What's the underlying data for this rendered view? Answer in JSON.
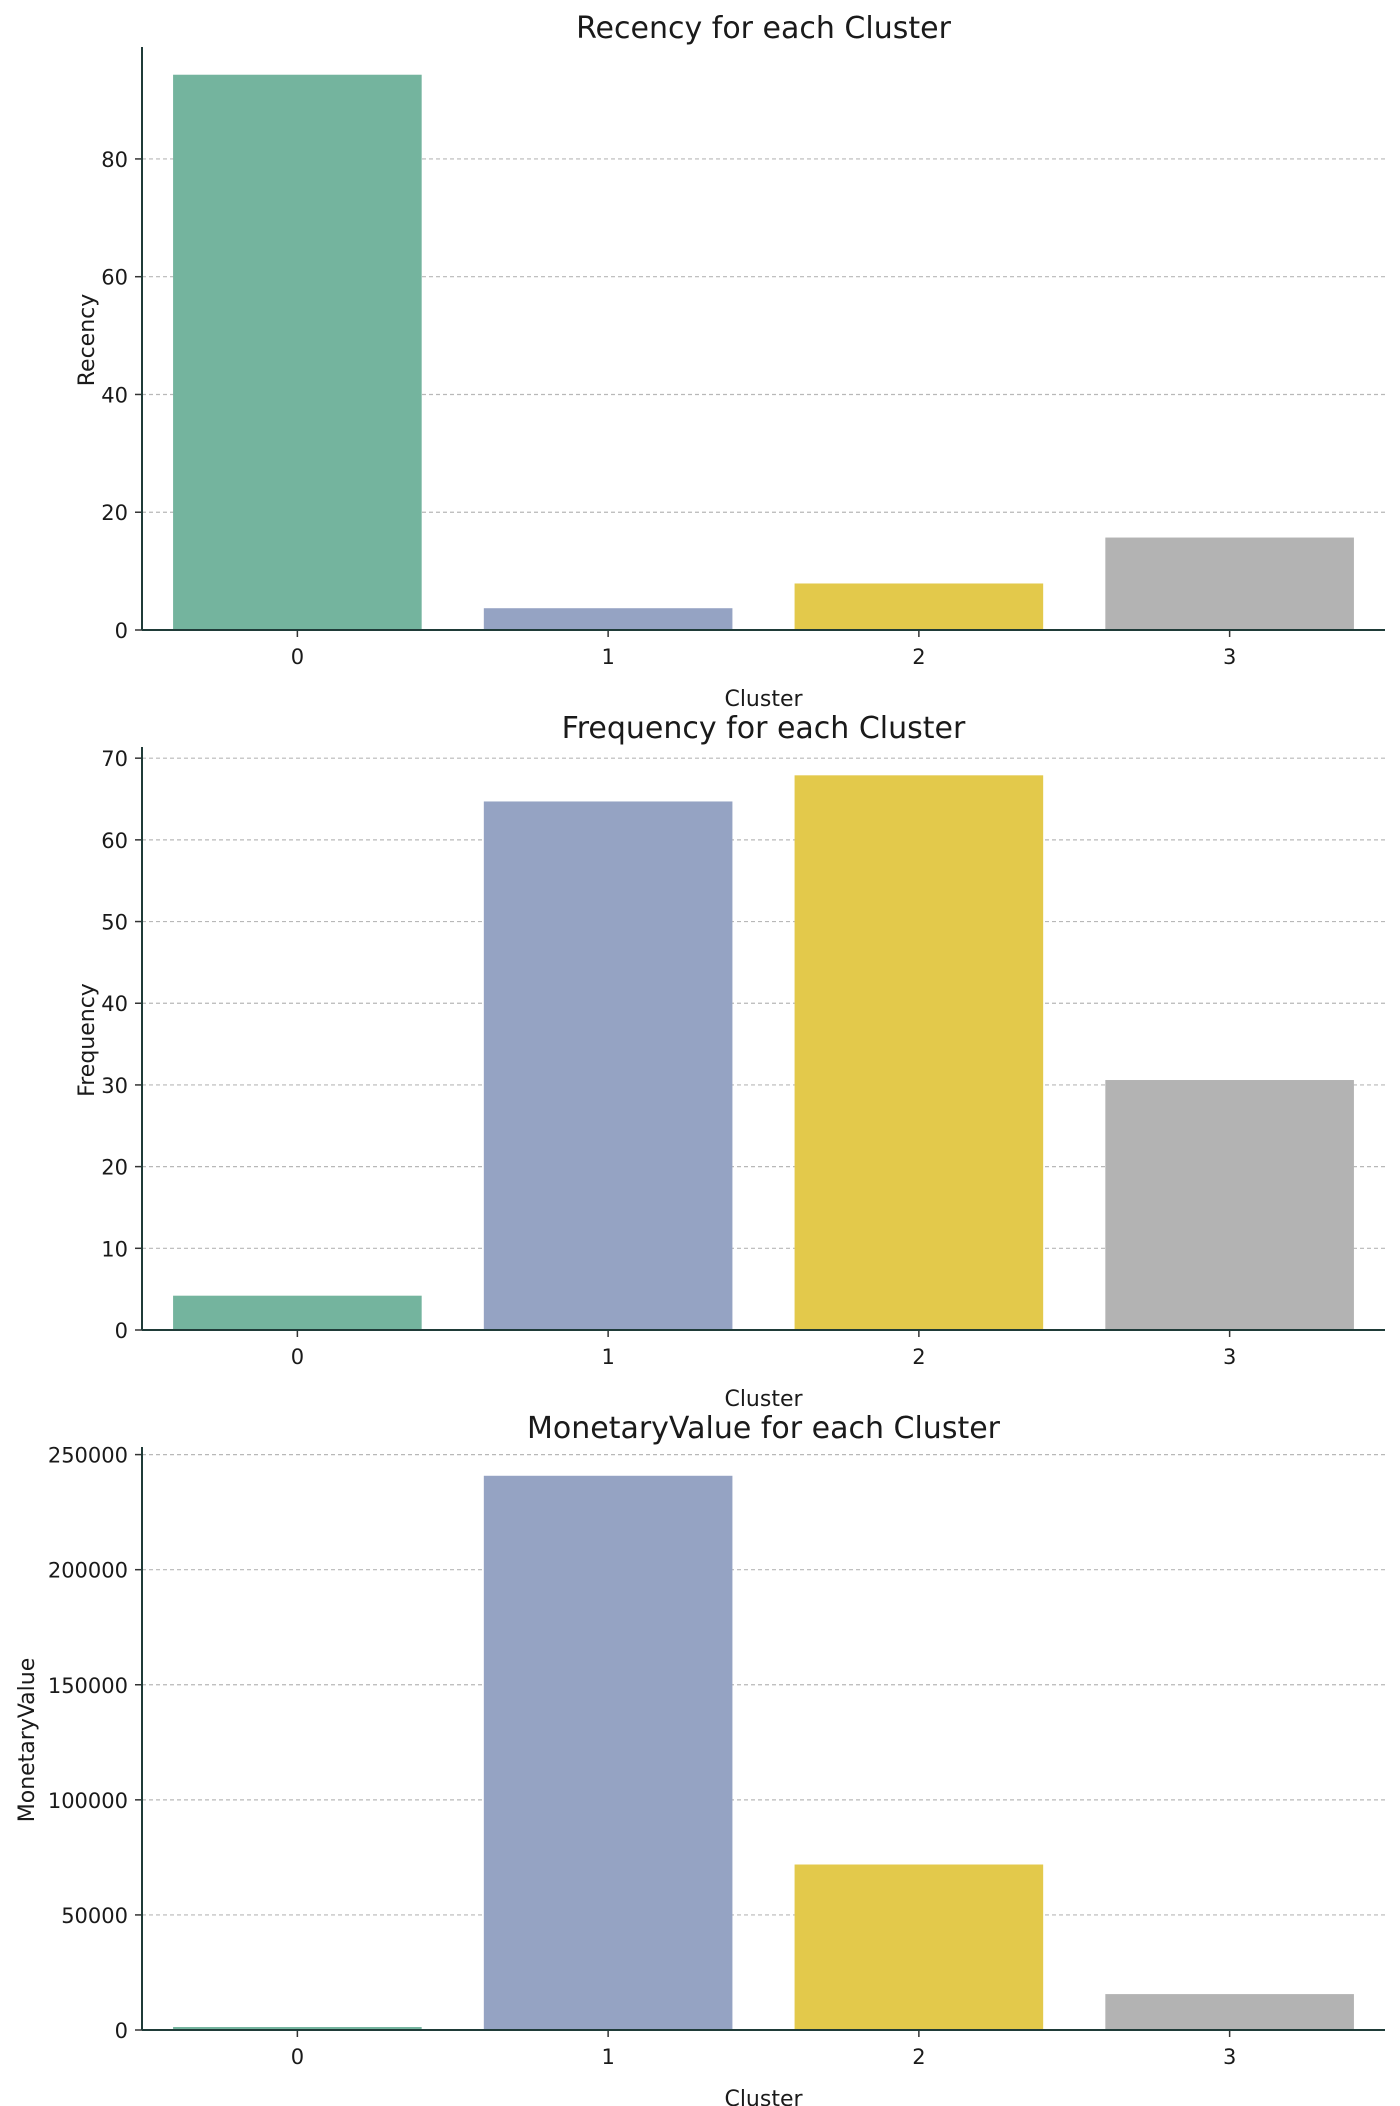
{
  "chart_data": [
    {
      "type": "bar",
      "title": "Recency for each Cluster",
      "xlabel": "Cluster",
      "ylabel": "Recency",
      "categories": [
        "0",
        "1",
        "2",
        "3"
      ],
      "values": [
        94.3,
        3.7,
        7.9,
        15.7
      ],
      "colors": [
        "#74b49e",
        "#95a3c3",
        "#e3c94b",
        "#b3b3b3"
      ],
      "ylim": [
        0,
        98.5
      ],
      "yticks": [
        0,
        20,
        40,
        60,
        80
      ],
      "ytick_labels": [
        "0",
        "20",
        "40",
        "60",
        "80"
      ],
      "grid": "y-dashed"
    },
    {
      "type": "bar",
      "title": "Frequency for each Cluster",
      "xlabel": "Cluster",
      "ylabel": "Frequency",
      "categories": [
        "0",
        "1",
        "2",
        "3"
      ],
      "values": [
        4.2,
        64.7,
        67.9,
        30.6
      ],
      "colors": [
        "#74b49e",
        "#95a3c3",
        "#e3c94b",
        "#b3b3b3"
      ],
      "ylim": [
        0,
        71
      ],
      "yticks": [
        0,
        10,
        20,
        30,
        40,
        50,
        60,
        70
      ],
      "ytick_labels": [
        "0",
        "10",
        "20",
        "30",
        "40",
        "50",
        "60",
        "70"
      ],
      "grid": "y-dashed"
    },
    {
      "type": "bar",
      "title": "MonetaryValue for each Cluster",
      "xlabel": "Cluster",
      "ylabel": "MonetaryValue",
      "categories": [
        "0",
        "1",
        "2",
        "3"
      ],
      "values": [
        1300,
        240800,
        71900,
        15600
      ],
      "colors": [
        "#74b49e",
        "#95a3c3",
        "#e3c94b",
        "#b3b3b3"
      ],
      "ylim": [
        0,
        252000
      ],
      "yticks": [
        0,
        50000,
        100000,
        150000,
        200000,
        250000
      ],
      "ytick_labels": [
        "0",
        "50000",
        "100000",
        "150000",
        "200000",
        "250000"
      ],
      "grid": "y-dashed"
    }
  ]
}
